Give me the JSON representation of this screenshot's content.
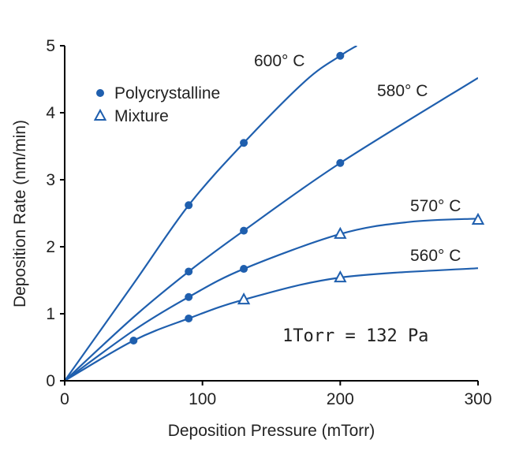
{
  "chart_data": {
    "type": "line",
    "title": "",
    "xlabel": "Deposition Pressure (mTorr)",
    "ylabel": "Deposition Rate (nm/min)",
    "xlim": [
      0,
      300
    ],
    "ylim": [
      0,
      5
    ],
    "xticks": [
      0,
      100,
      200,
      300
    ],
    "yticks": [
      0,
      1,
      2,
      3,
      4,
      5
    ],
    "grid": false,
    "color": "#1f5fae",
    "legend": {
      "placement": "top-left",
      "entries": [
        {
          "label": "Polycrystalline",
          "marker": "filled-circle"
        },
        {
          "label": "Mixture",
          "marker": "open-triangle"
        }
      ]
    },
    "annotation": "1Torr = 132 Pa",
    "series": [
      {
        "name": "600° C",
        "points": [
          {
            "x": 90,
            "y": 2.62,
            "m": "circle"
          },
          {
            "x": 130,
            "y": 3.55,
            "m": "circle"
          },
          {
            "x": 200,
            "y": 4.85,
            "m": "circle"
          }
        ],
        "curve": [
          [
            0,
            0
          ],
          [
            50,
            1.45
          ],
          [
            90,
            2.62
          ],
          [
            130,
            3.55
          ],
          [
            175,
            4.48
          ],
          [
            200,
            4.85
          ],
          [
            212,
            5.0
          ]
        ]
      },
      {
        "name": "580° C",
        "points": [
          {
            "x": 90,
            "y": 1.63,
            "m": "circle"
          },
          {
            "x": 130,
            "y": 2.24,
            "m": "circle"
          },
          {
            "x": 200,
            "y": 3.25,
            "m": "circle"
          }
        ],
        "curve": [
          [
            0,
            0
          ],
          [
            50,
            0.95
          ],
          [
            90,
            1.63
          ],
          [
            130,
            2.24
          ],
          [
            200,
            3.25
          ],
          [
            300,
            4.52
          ]
        ]
      },
      {
        "name": "570° C",
        "points": [
          {
            "x": 90,
            "y": 1.25,
            "m": "circle"
          },
          {
            "x": 130,
            "y": 1.67,
            "m": "circle"
          },
          {
            "x": 200,
            "y": 2.19,
            "m": "triangle"
          },
          {
            "x": 300,
            "y": 2.4,
            "m": "triangle"
          }
        ],
        "curve": [
          [
            0,
            0
          ],
          [
            50,
            0.75
          ],
          [
            90,
            1.25
          ],
          [
            130,
            1.67
          ],
          [
            200,
            2.19
          ],
          [
            250,
            2.37
          ],
          [
            300,
            2.42
          ]
        ]
      },
      {
        "name": "560° C",
        "points": [
          {
            "x": 50,
            "y": 0.6,
            "m": "circle"
          },
          {
            "x": 90,
            "y": 0.93,
            "m": "circle"
          },
          {
            "x": 130,
            "y": 1.21,
            "m": "triangle"
          },
          {
            "x": 200,
            "y": 1.54,
            "m": "triangle"
          }
        ],
        "curve": [
          [
            0,
            0
          ],
          [
            50,
            0.6
          ],
          [
            90,
            0.93
          ],
          [
            130,
            1.21
          ],
          [
            200,
            1.54
          ],
          [
            300,
            1.68
          ]
        ]
      }
    ]
  }
}
